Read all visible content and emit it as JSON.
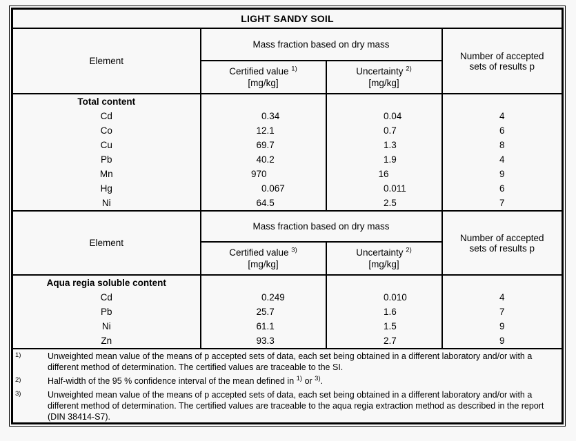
{
  "title": "LIGHT SANDY SOIL",
  "sections": [
    {
      "header": {
        "element": "Element",
        "group": "Mass fraction based on dry mass",
        "certified": {
          "label": "Certified value ",
          "sup": "1)",
          "unit": "[mg/kg]"
        },
        "uncertainty": {
          "label": "Uncertainty ",
          "sup": "2)",
          "unit": "[mg/kg]"
        },
        "accepted_lines": [
          "Number of accepted",
          "sets of results p"
        ]
      },
      "group_label": "Total content",
      "rows": [
        {
          "element": "Cd",
          "certified": "0.34",
          "uncertainty": "0.04",
          "p": "4"
        },
        {
          "element": "Co",
          "certified": "12.1",
          "uncertainty": "0.7",
          "p": "6"
        },
        {
          "element": "Cu",
          "certified": "69.7",
          "uncertainty": "1.3",
          "p": "8"
        },
        {
          "element": "Pb",
          "certified": "40.2",
          "uncertainty": "1.9",
          "p": "4"
        },
        {
          "element": "Mn",
          "certified": "970",
          "uncertainty": "16",
          "p": "9"
        },
        {
          "element": "Hg",
          "certified": "0.067",
          "uncertainty": "0.011",
          "p": "6"
        },
        {
          "element": "Ni",
          "certified": "64.5",
          "uncertainty": "2.5",
          "p": "7"
        }
      ]
    },
    {
      "header": {
        "element": "Element",
        "group": "Mass fraction based on dry mass",
        "certified": {
          "label": "Certified value ",
          "sup": "3)",
          "unit": "[mg/kg]"
        },
        "uncertainty": {
          "label": "Uncertainty ",
          "sup": "2)",
          "unit": "[mg/kg]"
        },
        "accepted_lines": [
          "Number of accepted",
          "sets of results p"
        ]
      },
      "group_label": "Aqua regia soluble content",
      "rows": [
        {
          "element": "Cd",
          "certified": "0.249",
          "uncertainty": "0.010",
          "p": "4"
        },
        {
          "element": "Pb",
          "certified": "25.7",
          "uncertainty": "1.6",
          "p": "7"
        },
        {
          "element": "Ni",
          "certified": "61.1",
          "uncertainty": "1.5",
          "p": "9"
        },
        {
          "element": "Zn",
          "certified": "93.3",
          "uncertainty": "2.7",
          "p": "9"
        }
      ]
    }
  ],
  "footnotes": [
    {
      "marker": "1)",
      "text": "Unweighted mean value of the means of p accepted sets of data, each set being obtained in a different laboratory and/or with a different method of determination. The certified values are traceable to the SI."
    },
    {
      "marker": "2)",
      "parts": {
        "pre": "Half-width of the 95 % confidence interval of the mean defined in ",
        "sup1": "1)",
        "mid": " or ",
        "sup2": "3)",
        "post": "."
      }
    },
    {
      "marker": "3)",
      "text": "Unweighted mean value of the means of p accepted sets of data, each set being obtained in a different laboratory and/or with a different method of determination. The certified values are traceable to the aqua regia extraction method as described in the report (DIN 38414-S7)."
    }
  ]
}
